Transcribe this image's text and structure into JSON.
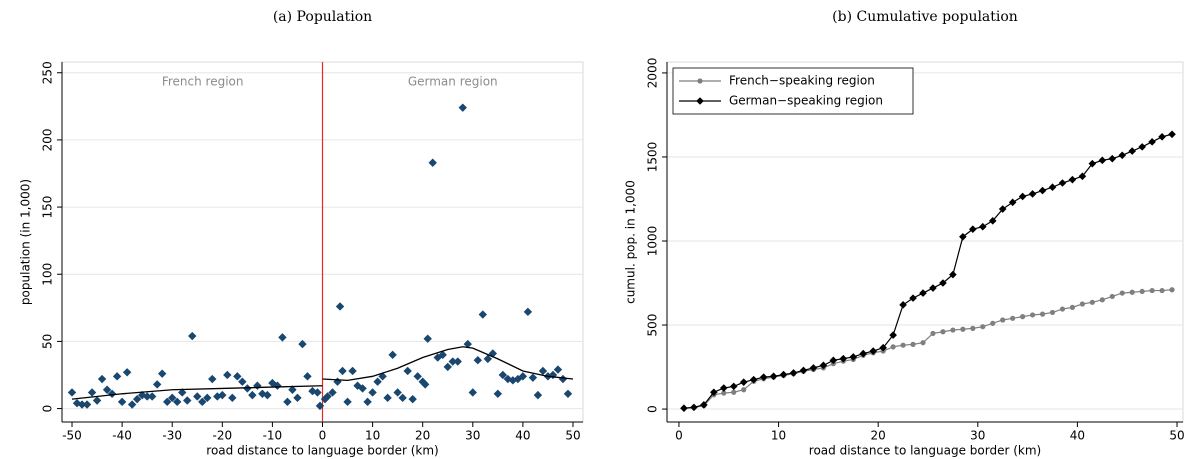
{
  "chart_data": [
    {
      "type": "scatter",
      "title": "(a) Population",
      "xlabel": "road distance to language border (km)",
      "ylabel": "population (in 1,000)",
      "xlim": [
        -52,
        52
      ],
      "ylim": [
        -10,
        258
      ],
      "xticks": [
        -50,
        -40,
        -30,
        -20,
        -10,
        0,
        10,
        20,
        30,
        40,
        50
      ],
      "yticks": [
        0,
        50,
        100,
        150,
        200,
        250
      ],
      "grid": true,
      "color": "#1a476f",
      "vline": 0,
      "vline_color": "#e8291c",
      "annotations": [
        "French region",
        "German region"
      ],
      "annotation_color": "#8c8c8c",
      "x": [
        -50,
        -49,
        -48,
        -47,
        -46,
        -45,
        -44,
        -43,
        -42,
        -41,
        -40,
        -39,
        -38,
        -37,
        -36,
        -35,
        -34,
        -33,
        -32,
        -31,
        -30,
        -29,
        -28,
        -27,
        -26,
        -25,
        -24,
        -23,
        -22,
        -21,
        -20,
        -19,
        -18,
        -17,
        -16,
        -15,
        -14,
        -13,
        -12,
        -11,
        -10,
        -9,
        -8,
        -7,
        -6,
        -5,
        -4,
        -3,
        -2,
        -1,
        -0.5,
        0.5,
        1,
        2,
        3,
        3.5,
        4,
        5,
        6,
        7,
        8,
        9,
        10,
        11,
        12,
        13,
        14,
        15,
        16,
        17,
        18,
        19,
        20,
        20.5,
        21,
        22,
        23,
        24,
        25,
        26,
        27,
        28,
        29,
        30,
        31,
        32,
        33,
        34,
        35,
        36,
        37,
        38,
        39,
        40,
        41,
        42,
        43,
        44,
        45,
        46,
        47,
        48,
        49
      ],
      "values": [
        12,
        4,
        3,
        3,
        12,
        6,
        22,
        14,
        11,
        24,
        5,
        27,
        3,
        7,
        10,
        9,
        9,
        18,
        26,
        5,
        8,
        5,
        12,
        6,
        54,
        9,
        5,
        8,
        22,
        9,
        10,
        25,
        8,
        24,
        20,
        15,
        10,
        17,
        11,
        10,
        19,
        17,
        53,
        5,
        14,
        8,
        48,
        24,
        13,
        12,
        2,
        7,
        9,
        12,
        20,
        76,
        28,
        5,
        28,
        17,
        15,
        5,
        12,
        20,
        24,
        8,
        40,
        12,
        8,
        28,
        7,
        24,
        20,
        18,
        52,
        183,
        38,
        40,
        31,
        35,
        35,
        224,
        48,
        12,
        36,
        70,
        37,
        41,
        11,
        25,
        22,
        21,
        22,
        24,
        72,
        23,
        10,
        28,
        24,
        25,
        29,
        22,
        11
      ],
      "fit": [
        {
          "color": "#000000",
          "x": [
            -50,
            -40,
            -30,
            -20,
            -10,
            0
          ],
          "values": [
            7,
            11,
            14,
            15,
            16,
            17
          ]
        },
        {
          "color": "#000000",
          "x": [
            0,
            5,
            10,
            15,
            20,
            25,
            28,
            30,
            35,
            40,
            45,
            50
          ],
          "values": [
            22,
            21,
            24,
            30,
            38,
            44,
            46,
            45,
            37,
            28,
            24,
            22
          ]
        }
      ]
    },
    {
      "type": "line",
      "title": "(b) Cumulative population",
      "xlabel": "road distance to language border (km)",
      "ylabel": "cumul. pop. in 1,000",
      "xlim": [
        -1.2,
        50.6
      ],
      "ylim": [
        -77,
        2065
      ],
      "xticks": [
        0,
        10,
        20,
        30,
        40,
        50
      ],
      "yticks": [
        0,
        500,
        1000,
        1500,
        2000
      ],
      "grid": true,
      "legend": "top-left",
      "x": [
        0.5,
        1.5,
        2.5,
        3.5,
        4.5,
        5.5,
        6.5,
        7.5,
        8.5,
        9.5,
        10.5,
        11.5,
        12.5,
        13.5,
        14.5,
        15.5,
        16.5,
        17.5,
        18.5,
        19.5,
        20.5,
        21.5,
        22.5,
        23.5,
        24.5,
        25.5,
        26.5,
        27.5,
        28.5,
        29.5,
        30.5,
        31.5,
        32.5,
        33.5,
        34.5,
        35.5,
        36.5,
        37.5,
        38.5,
        39.5,
        40.5,
        41.5,
        42.5,
        43.5,
        44.5,
        45.5,
        46.5,
        47.5,
        48.5,
        49.5
      ],
      "series": [
        {
          "name": "French−speaking region",
          "color": "#7f7f7f",
          "marker": "circle",
          "values": [
            5,
            10,
            20,
            85,
            95,
            100,
            115,
            165,
            180,
            190,
            200,
            210,
            225,
            235,
            245,
            270,
            285,
            295,
            320,
            335,
            345,
            370,
            380,
            385,
            395,
            450,
            460,
            470,
            475,
            480,
            490,
            510,
            530,
            540,
            550,
            560,
            565,
            575,
            595,
            605,
            625,
            635,
            650,
            670,
            690,
            695,
            700,
            705,
            705,
            710
          ]
        },
        {
          "name": "German−speaking region",
          "color": "#000000",
          "marker": "diamond",
          "values": [
            5,
            10,
            25,
            100,
            125,
            135,
            160,
            175,
            190,
            195,
            205,
            215,
            230,
            245,
            260,
            290,
            300,
            310,
            330,
            345,
            365,
            440,
            620,
            660,
            690,
            720,
            750,
            800,
            1025,
            1070,
            1085,
            1120,
            1190,
            1230,
            1265,
            1280,
            1300,
            1320,
            1345,
            1365,
            1385,
            1460,
            1480,
            1490,
            1510,
            1535,
            1560,
            1590,
            1620,
            1635
          ]
        }
      ]
    }
  ]
}
